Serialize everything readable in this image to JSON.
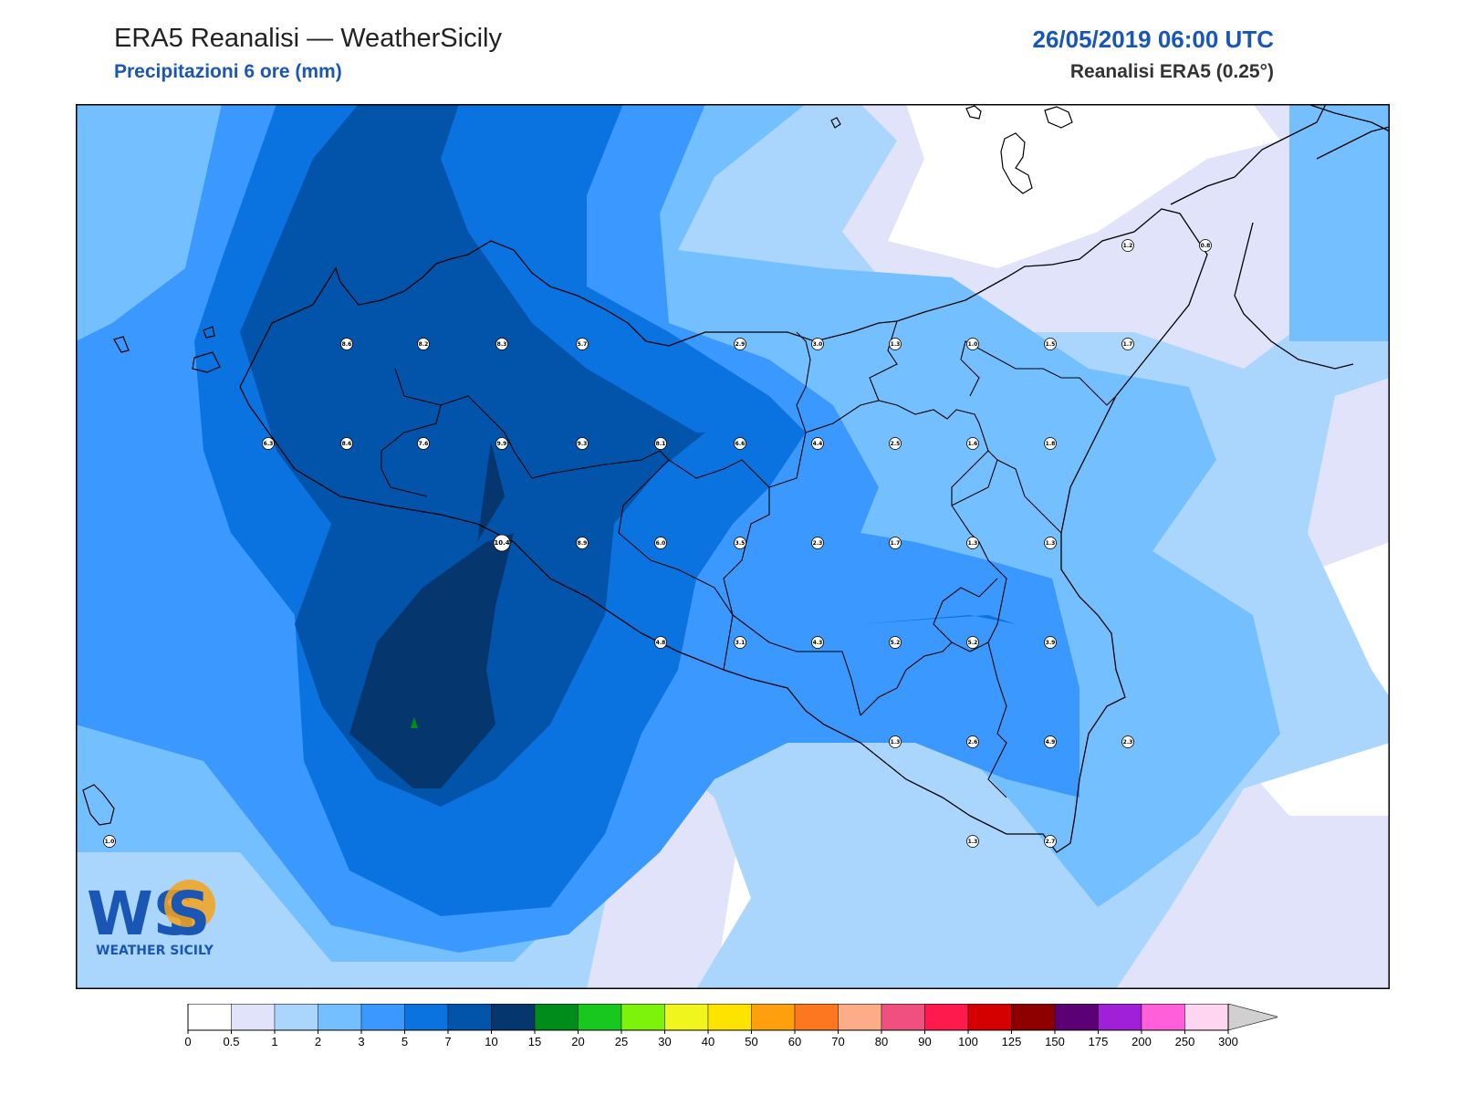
{
  "header": {
    "title": "ERA5 Reanalisi — WeatherSicily",
    "subtitle": "Precipitazioni 6 ore (mm)",
    "datetime": "26/05/2019 06:00 UTC",
    "model": "Reanalisi ERA5 (0.25°)"
  },
  "logo": {
    "mark": "WS",
    "text": "WEATHER SICILY"
  },
  "map": {
    "region": "Sicilia",
    "field": "precipitation_6h",
    "values_mm": [
      {
        "label": "8.6"
      },
      {
        "label": "8.2"
      },
      {
        "label": "8.3"
      },
      {
        "label": "5.7"
      },
      {
        "label": "2.9"
      },
      {
        "label": "3.0"
      },
      {
        "label": "1.3"
      },
      {
        "label": "1.0"
      },
      {
        "label": "1.5"
      },
      {
        "label": "1.7"
      },
      {
        "label": "6.3"
      },
      {
        "label": "8.6"
      },
      {
        "label": "7.6"
      },
      {
        "label": "9.9"
      },
      {
        "label": "9.3"
      },
      {
        "label": "8.1"
      },
      {
        "label": "6.6"
      },
      {
        "label": "4.4"
      },
      {
        "label": "2.5"
      },
      {
        "label": "1.6"
      },
      {
        "label": "1.8"
      },
      {
        "label": "10.4"
      },
      {
        "label": "8.9"
      },
      {
        "label": "6.0"
      },
      {
        "label": "3.5"
      },
      {
        "label": "2.3"
      },
      {
        "label": "1.7"
      },
      {
        "label": "1.3"
      },
      {
        "label": "1.3"
      },
      {
        "label": "4.8"
      },
      {
        "label": "3.1"
      },
      {
        "label": "4.3"
      },
      {
        "label": "5.2"
      },
      {
        "label": "5.2"
      },
      {
        "label": "3.9"
      },
      {
        "label": "1.3"
      },
      {
        "label": "2.6"
      },
      {
        "label": "4.9"
      },
      {
        "label": "2.3"
      },
      {
        "label": "1.3"
      },
      {
        "label": "2.7"
      },
      {
        "label": "1.2"
      },
      {
        "label": "0.8"
      },
      {
        "label": "1.0"
      }
    ]
  },
  "colorbar": {
    "ticks": [
      "0",
      "0.5",
      "1",
      "2",
      "3",
      "5",
      "7",
      "10",
      "15",
      "20",
      "25",
      "30",
      "40",
      "50",
      "60",
      "70",
      "80",
      "90",
      "100",
      "125",
      "150",
      "175",
      "200",
      "250",
      "300"
    ],
    "colors": [
      "#ffffff",
      "#e1e3fa",
      "#aad6fe",
      "#74bfff",
      "#3a98ff",
      "#0a73e0",
      "#0253aa",
      "#06366e",
      "#008c1a",
      "#19c81f",
      "#7df20a",
      "#f0f51e",
      "#fde400",
      "#fea00d",
      "#fd7620",
      "#fdac88",
      "#ef5080",
      "#fe1a4c",
      "#d40000",
      "#8e0000",
      "#5c0076",
      "#a020d8",
      "#ff5fd9",
      "#ffd5f2"
    ],
    "extend_color": "#d0d0d0"
  }
}
